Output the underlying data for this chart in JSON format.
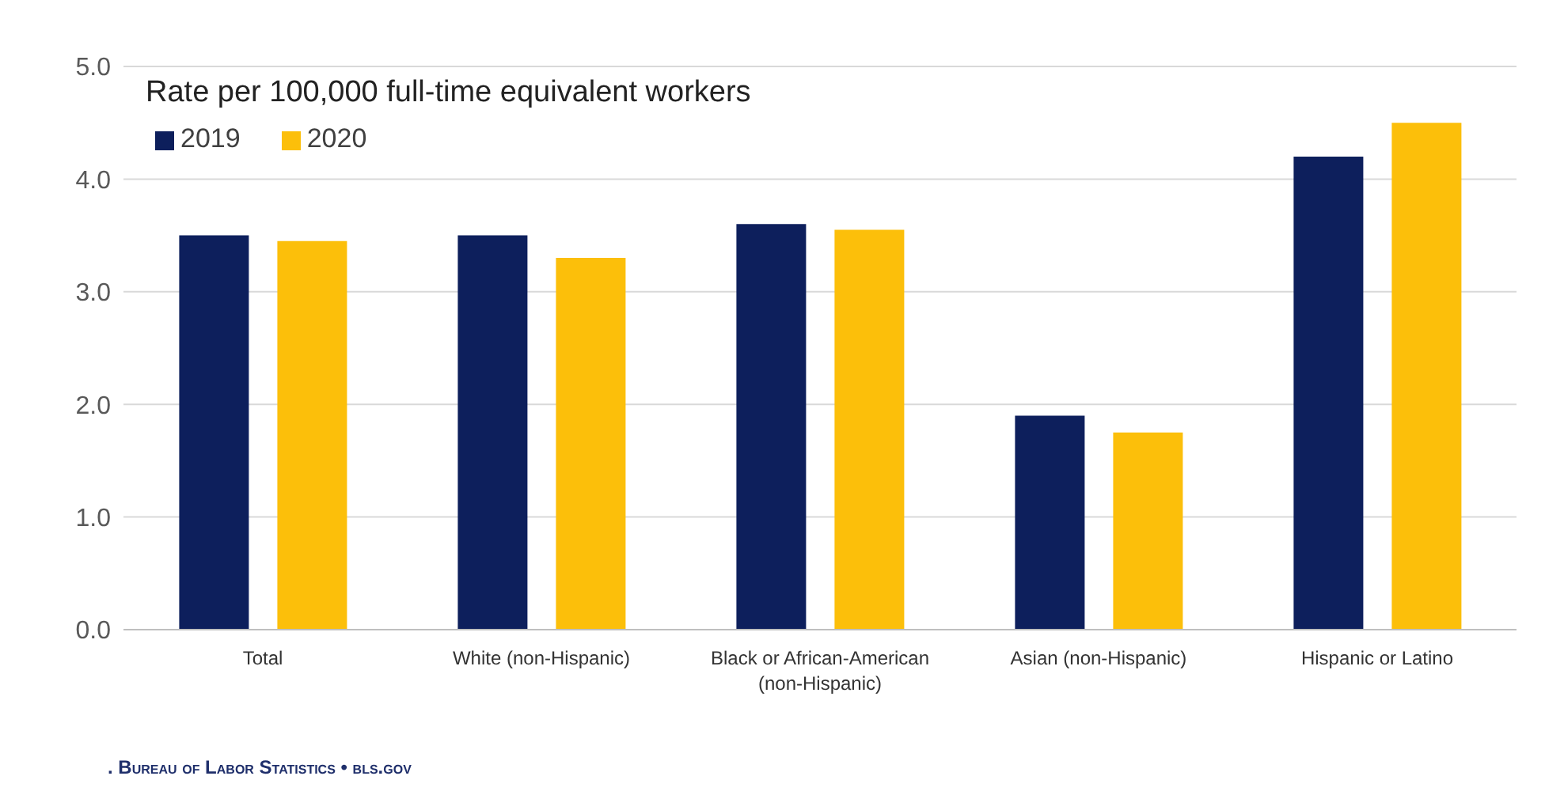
{
  "chart_data": {
    "type": "bar",
    "title": "Rate per 100,000 full-time equivalent workers",
    "categories": [
      "Total",
      "White (non-Hispanic)",
      "Black or African-American (non-Hispanic)",
      "Asian (non-Hispanic)",
      "Hispanic or Latino"
    ],
    "series": [
      {
        "name": "2019",
        "color": "#0d1f5c",
        "values": [
          3.5,
          3.5,
          3.6,
          1.9,
          4.2
        ]
      },
      {
        "name": "2020",
        "color": "#fcbf0a",
        "values": [
          3.45,
          3.3,
          3.55,
          1.75,
          4.5
        ]
      }
    ],
    "ylim": [
      0,
      5
    ],
    "yticks": [
      {
        "value": 0,
        "label": "0.0"
      },
      {
        "value": 1,
        "label": "1.0"
      },
      {
        "value": 2,
        "label": "2.0"
      },
      {
        "value": 3,
        "label": "3.0"
      },
      {
        "value": 4,
        "label": "4.0"
      },
      {
        "value": 5,
        "label": "5.0"
      }
    ],
    "grid": "y",
    "legend": "top left",
    "annotations": [
      ". Bureau of Labor Statistics • bls.gov"
    ]
  }
}
